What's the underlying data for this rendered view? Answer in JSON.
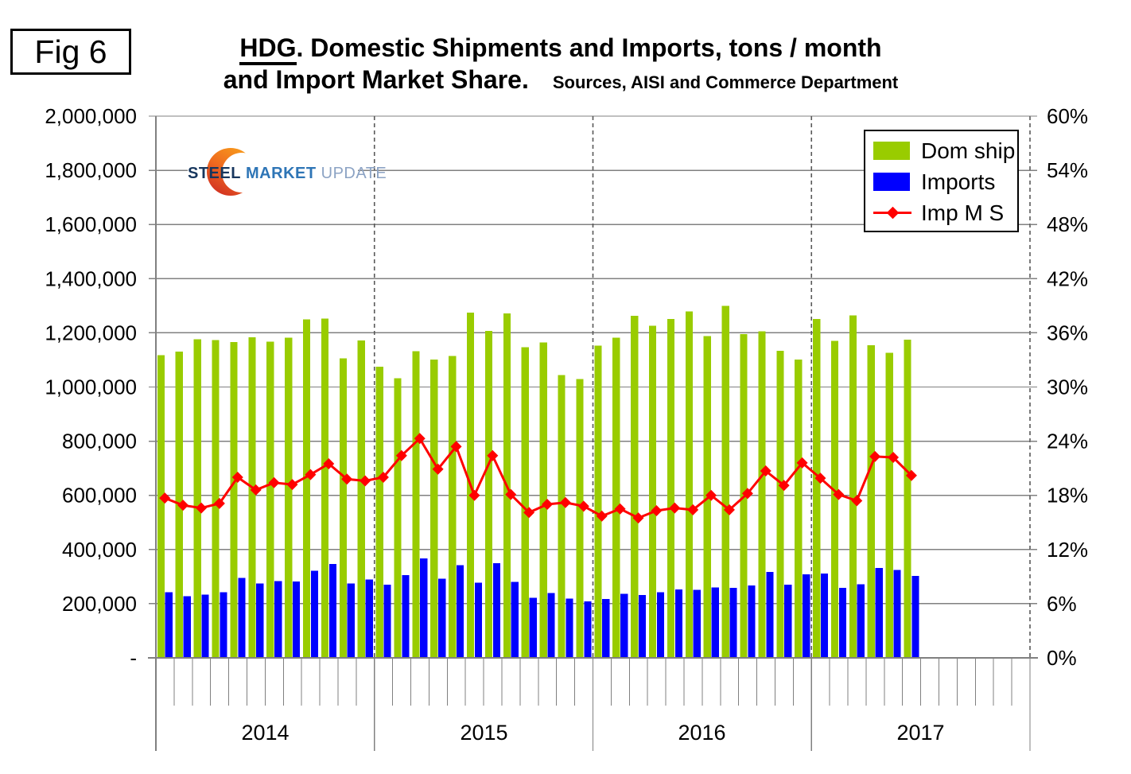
{
  "fig_label": "Fig 6",
  "title": {
    "hdg": "HDG",
    "line1_rest": ". Domestic Shipments and Imports, tons / month",
    "line2": "and Import Market Share.",
    "sources": "Sources, AISI and Commerce Department"
  },
  "logo": {
    "word1": "STEEL",
    "word2": "MARKET",
    "word3": "UPDATE"
  },
  "legend": {
    "items": [
      {
        "label": "Dom ship",
        "swatch": "bar",
        "color": "#99CC00"
      },
      {
        "label": "Imports",
        "swatch": "bar",
        "color": "#0000FF"
      },
      {
        "label": "Imp M S",
        "swatch": "line-diamond",
        "color": "#FF0000"
      }
    ]
  },
  "chart_data": {
    "type": "bar",
    "title": "HDG. Domestic Shipments and Imports, tons / month and Import Market Share.",
    "subtitle": "Sources, AISI and Commerce Department",
    "legend_position": "top-right-inside",
    "grid": "on",
    "x_axis": {
      "years": [
        "2014",
        "2015",
        "2016",
        "2017"
      ],
      "months_per_year": 12,
      "total_month_slots": 48,
      "plotted_months": 42
    },
    "y_axis_left": {
      "min": 0,
      "max": 2000000,
      "step": 200000,
      "tick_labels": [
        "2,000,000",
        "1,800,000",
        "1,600,000",
        "1,400,000",
        "1,200,000",
        "1,000,000",
        "800,000",
        "600,000",
        "400,000",
        "200,000",
        "-"
      ]
    },
    "y_axis_right": {
      "min": 0,
      "max": 60,
      "step": 6,
      "unit": "%",
      "tick_labels": [
        "60%",
        "54%",
        "48%",
        "42%",
        "36%",
        "30%",
        "24%",
        "18%",
        "12%",
        "6%",
        "0%"
      ]
    },
    "series": [
      {
        "name": "Dom ship",
        "type": "bar",
        "axis": "left",
        "color": "#99CC00",
        "values": [
          1118000,
          1130000,
          1176000,
          1174000,
          1166000,
          1184000,
          1168000,
          1182000,
          1250000,
          1253000,
          1106000,
          1172000,
          1075000,
          1032000,
          1132000,
          1101000,
          1114000,
          1274000,
          1207000,
          1272000,
          1147000,
          1165000,
          1044000,
          1029000,
          1153000,
          1182000,
          1263000,
          1226000,
          1251000,
          1279000,
          1188000,
          1300000,
          1196000,
          1205000,
          1134000,
          1102000,
          1251000,
          1170000,
          1264000,
          1154000,
          1126000,
          1175000
        ]
      },
      {
        "name": "Imports",
        "type": "bar",
        "axis": "left",
        "color": "#0000FF",
        "values": [
          243000,
          228000,
          234000,
          242000,
          295000,
          274000,
          284000,
          282000,
          321000,
          346000,
          274000,
          289000,
          270000,
          305000,
          367000,
          292000,
          342000,
          278000,
          349000,
          281000,
          222000,
          240000,
          219000,
          209000,
          217000,
          236000,
          232000,
          242000,
          253000,
          251000,
          260000,
          259000,
          268000,
          317000,
          270000,
          308000,
          312000,
          258000,
          271000,
          332000,
          325000,
          302000
        ]
      },
      {
        "name": "Imp M S",
        "type": "line",
        "axis": "right",
        "color": "#FF0000",
        "marker": "diamond",
        "values_percent": [
          17.7,
          16.9,
          16.6,
          17.1,
          20.0,
          18.6,
          19.4,
          19.2,
          20.3,
          21.5,
          19.8,
          19.6,
          20.0,
          22.4,
          24.3,
          20.9,
          23.4,
          18.0,
          22.4,
          18.1,
          16.1,
          17.0,
          17.2,
          16.8,
          15.7,
          16.5,
          15.5,
          16.3,
          16.6,
          16.4,
          18.0,
          16.4,
          18.2,
          20.7,
          19.1,
          21.6,
          19.9,
          18.1,
          17.4,
          22.3,
          22.2,
          20.2
        ]
      }
    ],
    "colors": {
      "gridline": "#808080",
      "axis": "#808080",
      "year_divider": "#595959",
      "background": "#FFFFFF"
    }
  }
}
